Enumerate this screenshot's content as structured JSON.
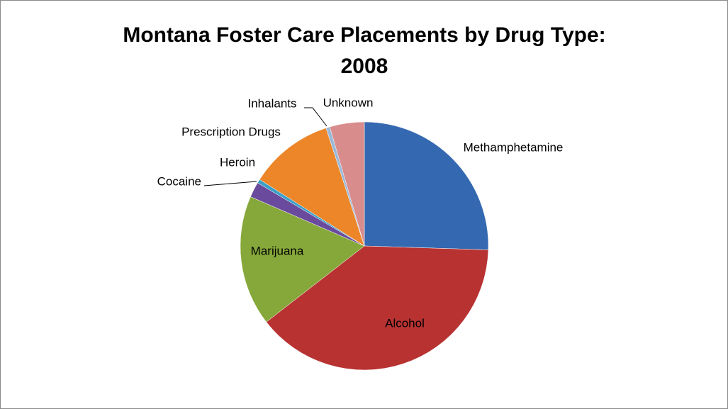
{
  "chart_data": {
    "type": "pie",
    "title": [
      "Montana Foster Care Placements by Drug Type:",
      "2008"
    ],
    "categories": [
      "Methamphetamine",
      "Alcohol",
      "Marijuana",
      "Cocaine",
      "Heroin",
      "Prescription Drugs",
      "Inhalants",
      "Unknown"
    ],
    "values": [
      25.5,
      39,
      17,
      2,
      0.5,
      11,
      0.5,
      4.5
    ],
    "colors": [
      "#3468b0",
      "#b83232",
      "#86a83a",
      "#6a4a9c",
      "#3aa0c8",
      "#ec8629",
      "#9ab8d8",
      "#d98c8c"
    ]
  }
}
